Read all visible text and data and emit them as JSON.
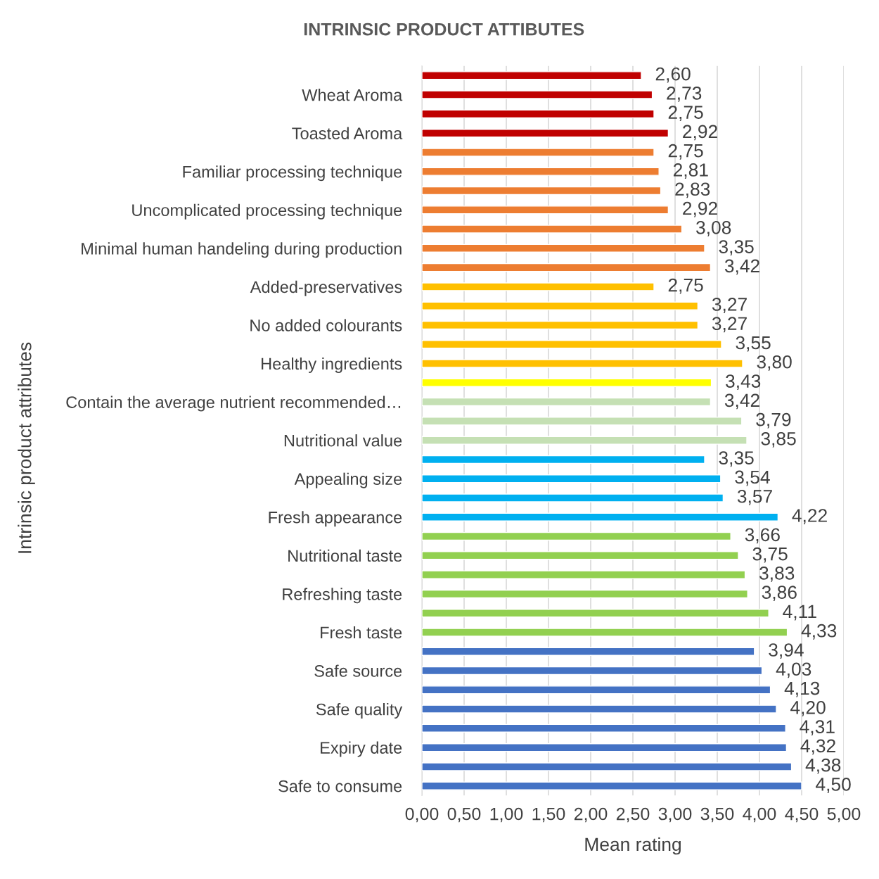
{
  "chart_data": {
    "type": "bar",
    "orientation": "horizontal",
    "title": "INTRINSIC PRODUCT ATTIBUTES",
    "xlabel": "Mean rating",
    "ylabel": "Intrinsic product attributes",
    "categories": [
      null,
      "Wheat Aroma",
      null,
      "Toasted Aroma",
      null,
      "Familiar processing technique",
      null,
      "Uncomplicated processing technique",
      null,
      "Minimal human handeling during production",
      null,
      "Added-preservatives",
      null,
      "No added colourants",
      null,
      "Healthy ingredients",
      null,
      "Contain the average nutrient recommended…",
      null,
      "Nutritional value",
      null,
      "Appealing size",
      null,
      "Fresh appearance",
      null,
      "Nutritional taste",
      null,
      "Refreshing taste",
      null,
      "Fresh taste",
      null,
      "Safe source",
      null,
      "Safe quality",
      null,
      "Expiry date",
      null,
      "Safe to consume"
    ],
    "values": [
      2.6,
      2.73,
      2.75,
      2.92,
      2.75,
      2.81,
      2.83,
      2.92,
      3.08,
      3.35,
      3.42,
      2.75,
      3.27,
      3.27,
      3.55,
      3.8,
      3.43,
      3.42,
      3.79,
      3.85,
      3.35,
      3.54,
      3.57,
      4.22,
      3.66,
      3.75,
      3.83,
      3.86,
      4.11,
      4.33,
      3.94,
      4.03,
      4.13,
      4.2,
      4.31,
      4.32,
      4.38,
      4.5
    ],
    "value_labels": [
      "2,60",
      "2,73",
      "2,75",
      "2,92",
      "2,75",
      "2,81",
      "2,83",
      "2,92",
      "3,08",
      "3,35",
      "3,42",
      "2,75",
      "3,27",
      "3,27",
      "3,55",
      "3,80",
      "3,43",
      "3,42",
      "3,79",
      "3,85",
      "3,35",
      "3,54",
      "3,57",
      "4,22",
      "3,66",
      "3,75",
      "3,83",
      "3,86",
      "4,11",
      "4,33",
      "3,94",
      "4,03",
      "4,13",
      "4,20",
      "4,31",
      "4,32",
      "4,38",
      "4,50"
    ],
    "colors": [
      "#c00000",
      "#c00000",
      "#c00000",
      "#c00000",
      "#ed7d31",
      "#ed7d31",
      "#ed7d31",
      "#ed7d31",
      "#ed7d31",
      "#ed7d31",
      "#ed7d31",
      "#ffc000",
      "#ffc000",
      "#ffc000",
      "#ffc000",
      "#ffc000",
      "#ffff00",
      "#c5e0b4",
      "#c5e0b4",
      "#c5e0b4",
      "#00b0f0",
      "#00b0f0",
      "#00b0f0",
      "#00b0f0",
      "#92d050",
      "#92d050",
      "#92d050",
      "#92d050",
      "#92d050",
      "#92d050",
      "#4472c4",
      "#4472c4",
      "#4472c4",
      "#4472c4",
      "#4472c4",
      "#4472c4",
      "#4472c4",
      "#4472c4"
    ],
    "xlim": [
      0,
      5
    ],
    "xticks": [
      {
        "value": 0,
        "label": "0,00"
      },
      {
        "value": 0.5,
        "label": "0,50"
      },
      {
        "value": 1,
        "label": "1,00"
      },
      {
        "value": 1.5,
        "label": "1,50"
      },
      {
        "value": 2,
        "label": "2,00"
      },
      {
        "value": 2.5,
        "label": "2,50"
      },
      {
        "value": 3,
        "label": "3,00"
      },
      {
        "value": 3.5,
        "label": "3,50"
      },
      {
        "value": 4,
        "label": "4,00"
      },
      {
        "value": 4.5,
        "label": "4,50"
      },
      {
        "value": 5,
        "label": "5,00"
      }
    ],
    "grid": "x",
    "legend": false
  }
}
